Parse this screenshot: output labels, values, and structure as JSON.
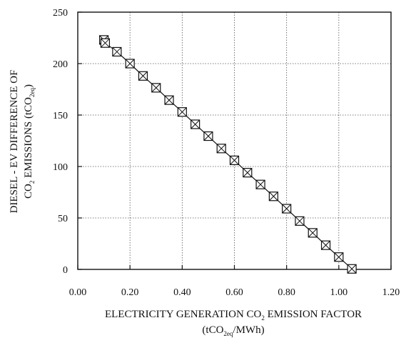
{
  "chart_data": {
    "type": "scatter",
    "title": "",
    "xlabel_line1_pre": "ELECTRICITY GENERATION CO",
    "xlabel_line1_sub": "2",
    "xlabel_line1_post": " EMISSION FACTOR",
    "xlabel_line2_pre": "(tCO",
    "xlabel_line2_sub": "2eq",
    "xlabel_line2_post": "/MWh)",
    "ylabel_line1": "DIESEL - EV DIFFERENCE OF",
    "ylabel_line2_pre": "CO",
    "ylabel_line2_sub": "2",
    "ylabel_line2_mid": " EMISSIONS (tCO",
    "ylabel_line2_sub2": "2eq",
    "ylabel_line2_post": ")",
    "xlim": [
      0,
      1.2
    ],
    "ylim": [
      0,
      250
    ],
    "xticks": [
      0,
      0.2,
      0.4,
      0.6,
      0.8,
      1.0,
      1.2
    ],
    "xtick_labels": [
      "0.00",
      "0.20",
      "0.40",
      "0.60",
      "0.80",
      "1.00",
      "1.20"
    ],
    "yticks": [
      0,
      50,
      100,
      150,
      200,
      250
    ],
    "ytick_labels": [
      "0",
      "50",
      "100",
      "150",
      "200",
      "250"
    ],
    "grid": true,
    "marker": "square-x",
    "series": [
      {
        "x": [
          0.1,
          0.105,
          0.15,
          0.2,
          0.25,
          0.3,
          0.35,
          0.4,
          0.45,
          0.5,
          0.55,
          0.6,
          0.65,
          0.7,
          0.75,
          0.8,
          0.85,
          0.9,
          0.95,
          1.0,
          1.05
        ],
        "y": [
          223,
          220,
          211.5,
          200,
          188,
          176.5,
          164.5,
          153,
          141,
          129.5,
          117.5,
          106,
          94,
          82.5,
          71,
          59,
          47,
          35.5,
          23.5,
          12,
          0.5
        ]
      }
    ]
  }
}
